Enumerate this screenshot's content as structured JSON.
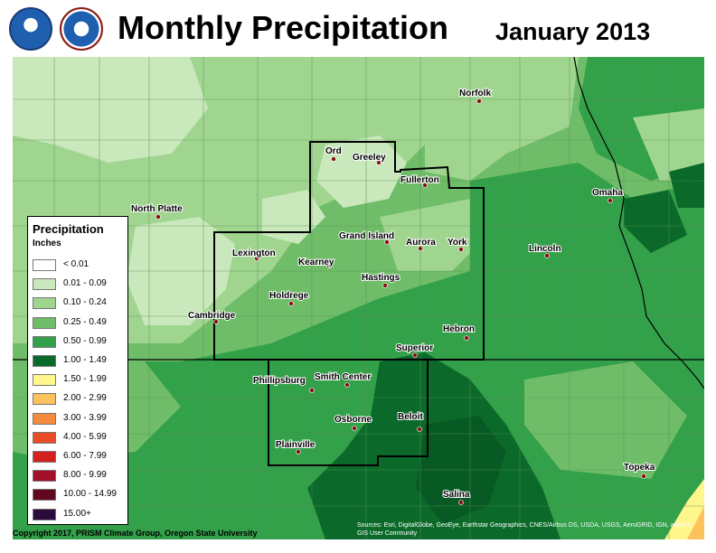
{
  "header": {
    "title": "Monthly Precipitation",
    "date": "January 2013",
    "logos": [
      "noaa-logo",
      "nws-logo"
    ]
  },
  "legend": {
    "title": "Precipitation",
    "units": "Inches",
    "items": [
      {
        "label": "< 0.01",
        "color": "#ffffff"
      },
      {
        "label": "0.01 - 0.09",
        "color": "#c9e8bc"
      },
      {
        "label": "0.10 - 0.24",
        "color": "#a0d590"
      },
      {
        "label": "0.25 - 0.49",
        "color": "#6fbd68"
      },
      {
        "label": "0.50 - 0.99",
        "color": "#33a04a"
      },
      {
        "label": "1.00 - 1.49",
        "color": "#0b6a2a"
      },
      {
        "label": "1.50 - 1.99",
        "color": "#fff68c"
      },
      {
        "label": "2.00 - 2.99",
        "color": "#fcc25b"
      },
      {
        "label": "3.00 - 3.99",
        "color": "#f58a3f"
      },
      {
        "label": "4.00 - 5.99",
        "color": "#ea4b27"
      },
      {
        "label": "6.00 - 7.99",
        "color": "#d52020"
      },
      {
        "label": "8.00 - 9.99",
        "color": "#a3102a"
      },
      {
        "label": "10.00 - 14.99",
        "color": "#62081e"
      },
      {
        "label": "15.00+",
        "color": "#2b0a3c"
      }
    ]
  },
  "cities": [
    "Ord",
    "Greeley",
    "Fullerton",
    "Norfolk",
    "Omaha",
    "North Platte",
    "Lexington",
    "Kearney",
    "Grand Island",
    "Aurora",
    "York",
    "Lincoln",
    "Hastings",
    "Holdrege",
    "Cambridge",
    "Hebron",
    "Superior",
    "Phillipsburg",
    "Smith Center",
    "Osborne",
    "Beloit",
    "Plainville",
    "Salina",
    "Topeka"
  ],
  "footer": {
    "copyright": "Copyright 2017, PRISM Climate Group, Oregon State University",
    "sources": "Sources: Esri, DigitalGlobe, GeoEye, Earthstar Geographics, CNES/Airbus DS, USDA, USGS, AeroGRID, IGN, and the GIS User Community"
  }
}
